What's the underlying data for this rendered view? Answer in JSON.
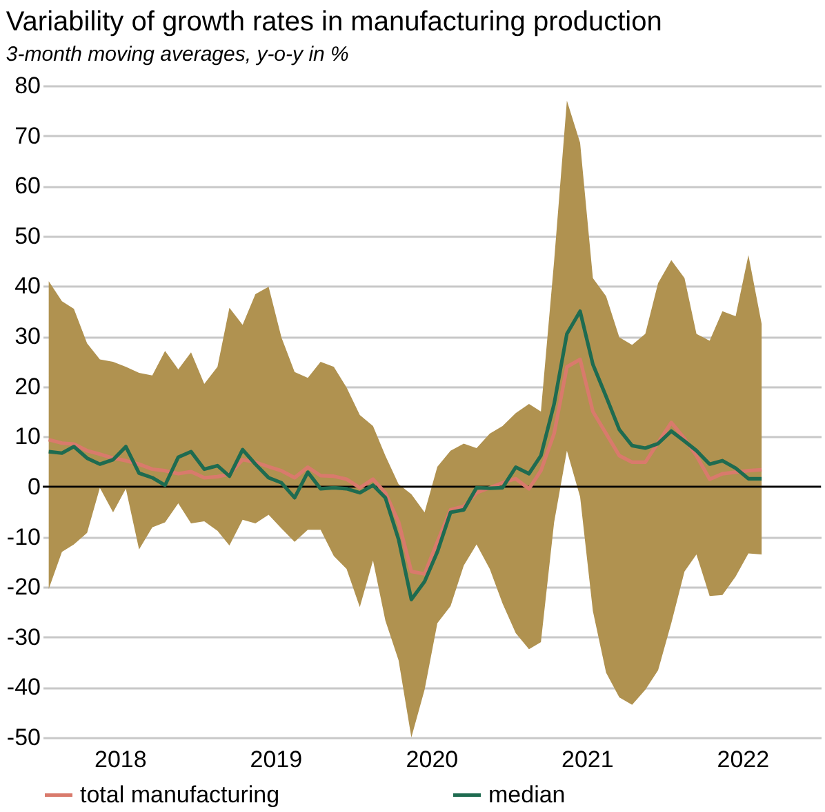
{
  "chart_data": {
    "type": "line",
    "title": "Variability of growth rates in manufacturing production",
    "subtitle": "3-month moving averages, y-o-y in %",
    "x": [
      "2018-01-15",
      "2018-02-15",
      "2018-03-15",
      "2018-04-15",
      "2018-05-15",
      "2018-06-15",
      "2018-07-15",
      "2018-08-15",
      "2018-09-15",
      "2018-10-15",
      "2018-11-15",
      "2018-12-15",
      "2019-01-15",
      "2019-02-15",
      "2019-03-15",
      "2019-04-15",
      "2019-05-15",
      "2019-06-15",
      "2019-07-15",
      "2019-08-15",
      "2019-09-15",
      "2019-10-15",
      "2019-11-15",
      "2019-12-15",
      "2020-01-15",
      "2020-02-15",
      "2020-03-15",
      "2020-04-15",
      "2020-05-15",
      "2020-06-15",
      "2020-07-15",
      "2020-08-15",
      "2020-09-15",
      "2020-10-15",
      "2020-11-15",
      "2020-12-15",
      "2021-01-15",
      "2021-02-15",
      "2021-03-15",
      "2021-04-15",
      "2021-05-15",
      "2021-06-15",
      "2021-07-15",
      "2021-08-15",
      "2021-09-15",
      "2021-10-15",
      "2021-11-15",
      "2021-12-15",
      "2022-01-15",
      "2022-02-15",
      "2022-03-15",
      "2022-04-15",
      "2022-05-15",
      "2022-06-15",
      "2022-07-15",
      "2022-08-15"
    ],
    "series": [
      {
        "name": "total manufacturing",
        "color": "#d97a6c",
        "values": [
          9.4,
          8.7,
          8.5,
          7.2,
          6.5,
          5.7,
          5.2,
          4.5,
          3.5,
          3.2,
          2.6,
          3,
          1.8,
          2,
          2.5,
          5.4,
          4.9,
          4,
          3.2,
          1.8,
          3.9,
          2.2,
          2.1,
          1.5,
          -0.2,
          1.5,
          -1.2,
          -7,
          -16.9,
          -17.4,
          -11,
          -4.6,
          -3.9,
          -1.2,
          -0.2,
          0.8,
          1.6,
          -0.4,
          3.2,
          10.6,
          23.9,
          25.4,
          15,
          10.6,
          6.2,
          4.9,
          4.9,
          8.8,
          12.8,
          9.6,
          6.2,
          1.5,
          2.6,
          2.9,
          3.2,
          3.4
        ]
      },
      {
        "name": "median",
        "color": "#1e6b50",
        "values": [
          7,
          6.7,
          8,
          5.7,
          4.5,
          5.4,
          8,
          2.7,
          1.8,
          0.3,
          5.9,
          7,
          3.5,
          4.2,
          2.1,
          7.4,
          4.5,
          1.8,
          0.8,
          -2.2,
          2.9,
          -0.4,
          -0.2,
          -0.4,
          -1.2,
          0.3,
          -2.2,
          -10.5,
          -22.5,
          -18.9,
          -13,
          -5.1,
          -4.6,
          -0.2,
          -0.3,
          -0.2,
          3.9,
          2.6,
          6.2,
          16.5,
          30.5,
          35,
          24.4,
          18,
          11.4,
          8.2,
          7.7,
          8.6,
          11.1,
          9.1,
          7.2,
          4.5,
          5.2,
          3.7,
          1.6,
          1.6
        ]
      },
      {
        "type": "area",
        "color": "#b09250",
        "values": [
          null,
          null,
          null,
          null,
          null,
          null,
          null,
          null,
          null,
          null,
          null,
          null,
          null,
          null,
          null,
          null,
          null,
          null,
          null,
          null,
          null,
          null,
          null,
          null,
          null,
          null,
          null,
          null,
          null,
          null,
          null,
          null,
          null,
          null,
          null,
          null,
          null,
          null,
          null,
          null,
          null,
          null,
          null,
          null,
          null,
          null,
          null,
          null,
          null,
          null,
          null,
          null,
          null,
          null,
          null,
          null
        ],
        "upper": [
          41,
          37,
          35.5,
          28.6,
          25.4,
          24.9,
          23.9,
          22.7,
          22.2,
          27.1,
          23.4,
          26.8,
          20.5,
          23.9,
          35.7,
          32.3,
          38.4,
          39.9,
          29.8,
          22.9,
          21.7,
          24.9,
          23.9,
          19.8,
          14.3,
          12.1,
          6.2,
          0.5,
          -1.5,
          -5.1,
          4,
          7.2,
          8.6,
          7.7,
          10.6,
          12.1,
          14.7,
          16.5,
          15,
          45,
          77,
          68.6,
          41.6,
          38,
          29.8,
          28.3,
          30.5,
          40.6,
          45.2,
          41.6,
          30.5,
          29.1,
          35,
          34,
          46.2,
          32.5
        ],
        "lower": [
          -20.4,
          -13,
          -11.5,
          -9.2,
          -0.2,
          -5.1,
          -0.4,
          -12.5,
          -8.1,
          -7.1,
          -3.3,
          -7.3,
          -6.9,
          -8.8,
          -11.7,
          -6.6,
          -7.3,
          -5.6,
          -8.3,
          -11,
          -8.6,
          -8.6,
          -13.8,
          -16.4,
          -24,
          -14.7,
          -26.7,
          -34.6,
          -50,
          -40.5,
          -27.2,
          -23.8,
          -15.7,
          -11.5,
          -16.4,
          -23.3,
          -29.2,
          -32.4,
          -31,
          -7.1,
          7.2,
          -2,
          -24.8,
          -37.1,
          -42,
          -43.5,
          -40.5,
          -36.6,
          -27.2,
          -16.9,
          -13.5,
          -21.8,
          -21.6,
          -17.9,
          -13.3,
          -13.5
        ]
      }
    ],
    "xlim": [
      "2018-01-01",
      "2023-01-01"
    ],
    "xticks": [
      {
        "value": "2018-07-01",
        "label": "2018"
      },
      {
        "value": "2019-07-01",
        "label": "2019"
      },
      {
        "value": "2020-07-01",
        "label": "2020"
      },
      {
        "value": "2021-07-01",
        "label": "2021"
      },
      {
        "value": "2022-07-01",
        "label": "2022"
      }
    ],
    "ylim": [
      -50,
      80
    ],
    "yticks": [
      -50,
      -40,
      -30,
      -20,
      -10,
      0,
      10,
      20,
      30,
      40,
      50,
      60,
      70,
      80
    ],
    "ref_lines": [
      {
        "axis": "y",
        "value": 0,
        "color": "#000000"
      }
    ],
    "grid": "y",
    "legend": "bottom",
    "line_style": "solid",
    "marker": "none"
  }
}
